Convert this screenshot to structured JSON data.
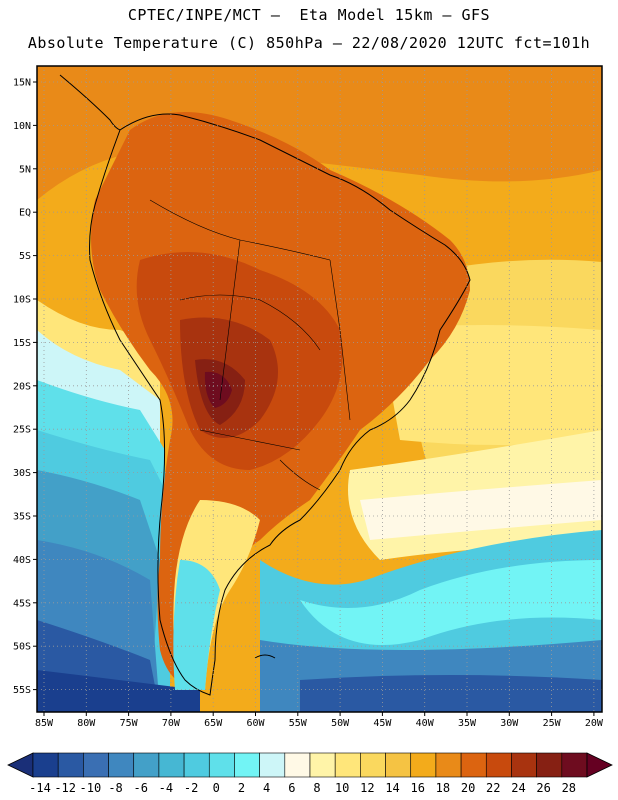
{
  "header": {
    "line1": "CPTEC/INPE/MCT –  Eta Model 15km – GFS",
    "line2": "Absolute Temperature (C) 850hPa – 22/08/2020 12UTC fct=101h"
  },
  "axes": {
    "lat_labels": [
      "15N",
      "10N",
      "5N",
      "EQ",
      "5S",
      "10S",
      "15S",
      "20S",
      "25S",
      "30S",
      "35S",
      "40S",
      "45S",
      "50S",
      "55S"
    ],
    "lon_labels": [
      "85W",
      "80W",
      "75W",
      "70W",
      "65W",
      "60W",
      "55W",
      "50W",
      "45W",
      "40W",
      "35W",
      "30W",
      "25W",
      "20W"
    ]
  },
  "colorbar": {
    "labels": [
      "-14",
      "-12",
      "-10",
      "-8",
      "-6",
      "-4",
      "-2",
      "0",
      "2",
      "4",
      "6",
      "8",
      "10",
      "12",
      "14",
      "16",
      "18",
      "20",
      "22",
      "24",
      "26",
      "28"
    ],
    "colors": [
      "#1a3f8e",
      "#2a59a3",
      "#3a6fb3",
      "#3f87bf",
      "#43a0c8",
      "#46b7d3",
      "#4fcbe0",
      "#5fe0ea",
      "#72f4f5",
      "#cdf6f8",
      "#fff9e6",
      "#fff4a8",
      "#ffe67a",
      "#fad85e",
      "#f5c343",
      "#f3ab1b",
      "#e98a18",
      "#dc6410",
      "#c84a0d",
      "#a8330f",
      "#862013",
      "#6e0c1f"
    ],
    "low_arrow": "#1a2f78",
    "high_arrow": "#650022"
  },
  "legend_colors": {
    "warm_core": "#6e0c1f",
    "land_warm": "#c84a0d",
    "ocean_tropical": "#f3ab1b",
    "ocean_subtropical": "#fad85e",
    "ocean_cold": "#46b7d3",
    "ocean_polar": "#2a59a3"
  }
}
